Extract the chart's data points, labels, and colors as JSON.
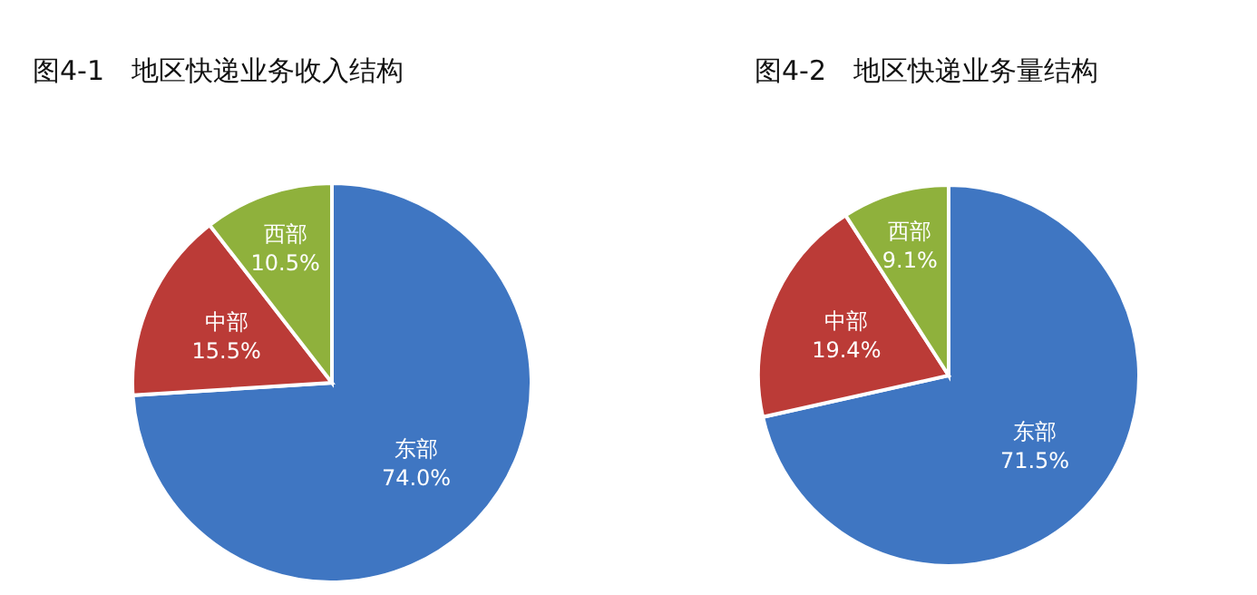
{
  "chart_data": [
    {
      "type": "pie",
      "title": "图4-1　地区快递业务收入结构",
      "categories": [
        "东部",
        "中部",
        "西部"
      ],
      "values": [
        74.0,
        15.5,
        10.5
      ],
      "colors": [
        "#3f76c2",
        "#bb3b37",
        "#8fb13c"
      ],
      "value_labels": [
        "74.0%",
        "15.5%",
        "10.5%"
      ]
    },
    {
      "type": "pie",
      "title": "图4-2　地区快递业务量结构",
      "categories": [
        "东部",
        "中部",
        "西部"
      ],
      "values": [
        71.5,
        19.4,
        9.1
      ],
      "colors": [
        "#3f76c2",
        "#bb3b37",
        "#8fb13c"
      ],
      "value_labels": [
        "71.5%",
        "19.4%",
        "9.1%"
      ]
    }
  ]
}
